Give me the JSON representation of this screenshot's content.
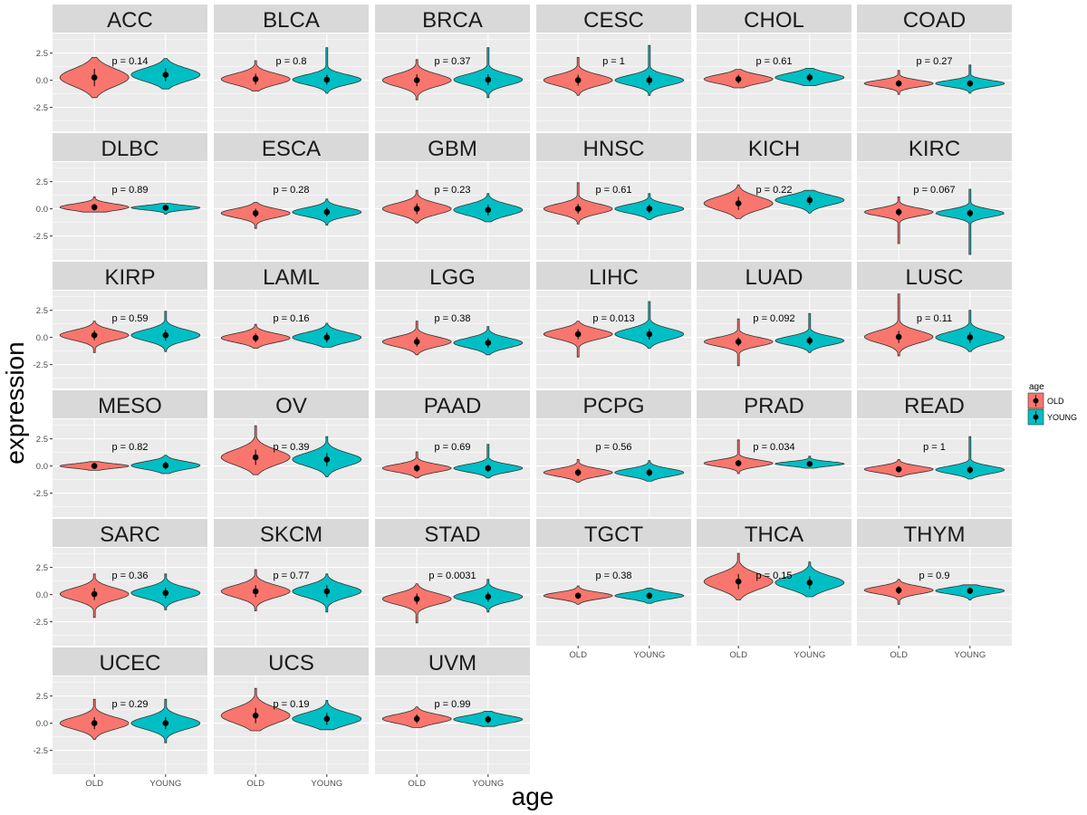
{
  "chart_data": {
    "type": "violin",
    "layout": "facet_wrap",
    "xlabel": "age",
    "ylabel": "expression",
    "categories": [
      "OLD",
      "YOUNG"
    ],
    "ylim": [
      -4.7,
      4.3
    ],
    "yticks": [
      -2.5,
      0.0,
      2.5
    ],
    "ytick_labels": [
      "-2.5",
      "0.0",
      "2.5"
    ],
    "legend": {
      "title": "age",
      "position": "right",
      "entries": [
        {
          "label": "OLD",
          "color": "#F8766D"
        },
        {
          "label": "YOUNG",
          "color": "#00BFC4"
        }
      ]
    },
    "colors": {
      "panel_bg": "#EBEBEB",
      "strip_bg": "#D9D9D9",
      "grid": "#FFFFFF",
      "outline": "#333333",
      "point": "#000000"
    },
    "panels": [
      {
        "label": "ACC",
        "p": "p = 0.14",
        "old": {
          "mean": 0.25,
          "min": -1.6,
          "max": 2.1,
          "sd": 0.8
        },
        "young": {
          "mean": 0.5,
          "min": -0.8,
          "max": 2.0,
          "sd": 0.6
        }
      },
      {
        "label": "BLCA",
        "p": "p = 0.8",
        "old": {
          "mean": 0.1,
          "min": -1.0,
          "max": 1.8,
          "sd": 0.5
        },
        "young": {
          "mean": 0.05,
          "min": -1.2,
          "max": 3.0,
          "sd": 0.45
        }
      },
      {
        "label": "BRCA",
        "p": "p = 0.37",
        "old": {
          "mean": 0.0,
          "min": -1.8,
          "max": 1.9,
          "sd": 0.55
        },
        "young": {
          "mean": 0.05,
          "min": -1.6,
          "max": 3.0,
          "sd": 0.5
        }
      },
      {
        "label": "CESC",
        "p": "p = 1",
        "old": {
          "mean": 0.0,
          "min": -1.4,
          "max": 2.1,
          "sd": 0.5
        },
        "young": {
          "mean": 0.0,
          "min": -1.4,
          "max": 3.2,
          "sd": 0.45
        }
      },
      {
        "label": "CHOL",
        "p": "p = 0.61",
        "old": {
          "mean": 0.1,
          "min": -0.7,
          "max": 1.0,
          "sd": 0.4
        },
        "young": {
          "mean": 0.25,
          "min": -0.5,
          "max": 1.1,
          "sd": 0.4
        }
      },
      {
        "label": "COAD",
        "p": "p = 0.27",
        "old": {
          "mean": -0.3,
          "min": -1.3,
          "max": 0.9,
          "sd": 0.3
        },
        "young": {
          "mean": -0.3,
          "min": -1.2,
          "max": 1.4,
          "sd": 0.3
        }
      },
      {
        "label": "DLBC",
        "p": "p = 0.89",
        "old": {
          "mean": 0.15,
          "min": -0.3,
          "max": 1.1,
          "sd": 0.3
        },
        "young": {
          "mean": 0.1,
          "min": -0.5,
          "max": 0.5,
          "sd": 0.2
        }
      },
      {
        "label": "ESCA",
        "p": "p = 0.28",
        "old": {
          "mean": -0.4,
          "min": -1.8,
          "max": 0.6,
          "sd": 0.4
        },
        "young": {
          "mean": -0.3,
          "min": -1.5,
          "max": 0.9,
          "sd": 0.4
        }
      },
      {
        "label": "GBM",
        "p": "p = 0.23",
        "old": {
          "mean": 0.0,
          "min": -1.3,
          "max": 1.7,
          "sd": 0.5
        },
        "young": {
          "mean": -0.1,
          "min": -1.2,
          "max": 1.4,
          "sd": 0.5
        }
      },
      {
        "label": "HNSC",
        "p": "p = 0.61",
        "old": {
          "mean": 0.0,
          "min": -1.4,
          "max": 2.4,
          "sd": 0.45
        },
        "young": {
          "mean": 0.0,
          "min": -1.0,
          "max": 1.4,
          "sd": 0.4
        }
      },
      {
        "label": "KICH",
        "p": "p = 0.22",
        "old": {
          "mean": 0.5,
          "min": -0.9,
          "max": 2.2,
          "sd": 0.6
        },
        "young": {
          "mean": 0.8,
          "min": -0.4,
          "max": 1.7,
          "sd": 0.45
        }
      },
      {
        "label": "KIRC",
        "p": "p = 0.067",
        "old": {
          "mean": -0.3,
          "min": -3.2,
          "max": 1.1,
          "sd": 0.35
        },
        "young": {
          "mean": -0.4,
          "min": -4.2,
          "max": 1.8,
          "sd": 0.35
        }
      },
      {
        "label": "KIRP",
        "p": "p = 0.59",
        "old": {
          "mean": 0.2,
          "min": -1.4,
          "max": 1.5,
          "sd": 0.45
        },
        "young": {
          "mean": 0.2,
          "min": -1.3,
          "max": 2.4,
          "sd": 0.5
        }
      },
      {
        "label": "LAML",
        "p": "p = 0.16",
        "old": {
          "mean": -0.05,
          "min": -1.0,
          "max": 1.2,
          "sd": 0.4
        },
        "young": {
          "mean": 0.0,
          "min": -0.9,
          "max": 1.3,
          "sd": 0.45
        }
      },
      {
        "label": "LGG",
        "p": "p = 0.38",
        "old": {
          "mean": -0.4,
          "min": -1.6,
          "max": 1.5,
          "sd": 0.45
        },
        "young": {
          "mean": -0.5,
          "min": -1.6,
          "max": 1.0,
          "sd": 0.45
        }
      },
      {
        "label": "LIHC",
        "p": "p = 0.013",
        "old": {
          "mean": 0.3,
          "min": -1.8,
          "max": 1.5,
          "sd": 0.45
        },
        "young": {
          "mean": 0.3,
          "min": -1.0,
          "max": 3.3,
          "sd": 0.5
        }
      },
      {
        "label": "LUAD",
        "p": "p = 0.092",
        "old": {
          "mean": -0.4,
          "min": -2.6,
          "max": 1.7,
          "sd": 0.4
        },
        "young": {
          "mean": -0.3,
          "min": -1.4,
          "max": 2.2,
          "sd": 0.4
        }
      },
      {
        "label": "LUSC",
        "p": "p = 0.11",
        "old": {
          "mean": 0.05,
          "min": -1.7,
          "max": 4.0,
          "sd": 0.55
        },
        "young": {
          "mean": 0.0,
          "min": -1.3,
          "max": 2.5,
          "sd": 0.5
        }
      },
      {
        "label": "MESO",
        "p": "p = 0.82",
        "old": {
          "mean": 0.0,
          "min": -0.4,
          "max": 0.4,
          "sd": 0.2
        },
        "young": {
          "mean": 0.05,
          "min": -0.7,
          "max": 1.0,
          "sd": 0.35
        }
      },
      {
        "label": "OV",
        "p": "p = 0.39",
        "old": {
          "mean": 0.8,
          "min": -0.8,
          "max": 3.7,
          "sd": 0.7
        },
        "young": {
          "mean": 0.6,
          "min": -1.0,
          "max": 2.7,
          "sd": 0.6
        }
      },
      {
        "label": "PAAD",
        "p": "p = 0.69",
        "old": {
          "mean": -0.2,
          "min": -1.1,
          "max": 1.3,
          "sd": 0.35
        },
        "young": {
          "mean": -0.2,
          "min": -1.1,
          "max": 2.0,
          "sd": 0.35
        }
      },
      {
        "label": "PCPG",
        "p": "p = 0.56",
        "old": {
          "mean": -0.6,
          "min": -1.5,
          "max": 0.6,
          "sd": 0.35
        },
        "young": {
          "mean": -0.6,
          "min": -1.4,
          "max": 0.5,
          "sd": 0.35
        }
      },
      {
        "label": "PRAD",
        "p": "p = 0.034",
        "old": {
          "mean": 0.25,
          "min": -0.7,
          "max": 2.4,
          "sd": 0.3
        },
        "young": {
          "mean": 0.2,
          "min": -0.2,
          "max": 0.9,
          "sd": 0.2
        }
      },
      {
        "label": "READ",
        "p": "p = 1",
        "old": {
          "mean": -0.3,
          "min": -1.0,
          "max": 0.6,
          "sd": 0.3
        },
        "young": {
          "mean": -0.35,
          "min": -1.2,
          "max": 2.7,
          "sd": 0.35
        }
      },
      {
        "label": "SARC",
        "p": "p = 0.36",
        "old": {
          "mean": 0.05,
          "min": -2.1,
          "max": 1.9,
          "sd": 0.55
        },
        "young": {
          "mean": 0.15,
          "min": -1.4,
          "max": 1.9,
          "sd": 0.5
        }
      },
      {
        "label": "SKCM",
        "p": "p = 0.77",
        "old": {
          "mean": 0.3,
          "min": -1.5,
          "max": 2.3,
          "sd": 0.55
        },
        "young": {
          "mean": 0.3,
          "min": -1.6,
          "max": 1.9,
          "sd": 0.55
        }
      },
      {
        "label": "STAD",
        "p": "p = 0.0031",
        "old": {
          "mean": -0.4,
          "min": -2.6,
          "max": 1.0,
          "sd": 0.5
        },
        "young": {
          "mean": -0.2,
          "min": -1.6,
          "max": 1.4,
          "sd": 0.45
        }
      },
      {
        "label": "TGCT",
        "p": "p = 0.38",
        "old": {
          "mean": -0.1,
          "min": -0.9,
          "max": 0.8,
          "sd": 0.3
        },
        "young": {
          "mean": -0.1,
          "min": -0.8,
          "max": 0.6,
          "sd": 0.3
        }
      },
      {
        "label": "THCA",
        "p": "p = 0.15",
        "old": {
          "mean": 1.2,
          "min": -0.5,
          "max": 3.8,
          "sd": 0.7
        },
        "young": {
          "mean": 1.1,
          "min": -0.2,
          "max": 3.0,
          "sd": 0.6
        }
      },
      {
        "label": "THYM",
        "p": "p = 0.9",
        "old": {
          "mean": 0.4,
          "min": -0.9,
          "max": 1.4,
          "sd": 0.35
        },
        "young": {
          "mean": 0.35,
          "min": -0.5,
          "max": 0.9,
          "sd": 0.3
        }
      },
      {
        "label": "UCEC",
        "p": "p = 0.29",
        "old": {
          "mean": 0.0,
          "min": -1.5,
          "max": 2.2,
          "sd": 0.55
        },
        "young": {
          "mean": 0.0,
          "min": -1.8,
          "max": 2.2,
          "sd": 0.55
        }
      },
      {
        "label": "UCS",
        "p": "p = 0.19",
        "old": {
          "mean": 0.7,
          "min": -0.7,
          "max": 3.2,
          "sd": 0.7
        },
        "young": {
          "mean": 0.4,
          "min": -0.6,
          "max": 2.1,
          "sd": 0.55
        }
      },
      {
        "label": "UVM",
        "p": "p = 0.99",
        "old": {
          "mean": 0.4,
          "min": -0.4,
          "max": 1.5,
          "sd": 0.4
        },
        "young": {
          "mean": 0.35,
          "min": -0.3,
          "max": 1.1,
          "sd": 0.35
        }
      }
    ]
  }
}
